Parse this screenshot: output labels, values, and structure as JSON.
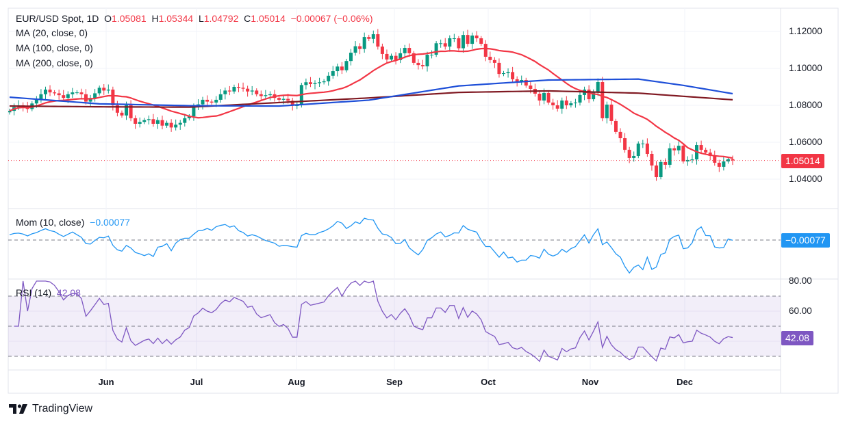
{
  "header": {
    "symbol": "EUR/USD Spot, 1D",
    "o_label": "O",
    "o": "1.05081",
    "h_label": "H",
    "h": "1.05344",
    "l_label": "L",
    "l": "1.04792",
    "c_label": "C",
    "c": "1.05014",
    "change": "−0.00067 (−0.06%)"
  },
  "indicators": {
    "ma20": "MA (20, close, 0)",
    "ma100": "MA (100, close, 0)",
    "ma200": "MA (200, close, 0)",
    "mom": "Mom (10, close)",
    "mom_value": "−0.00077",
    "rsi": "RSI (14)",
    "rsi_value": "42.08"
  },
  "brand": "TradingView",
  "colors": {
    "up": "#089981",
    "down": "#f23645",
    "ma20": "#f23645",
    "ma100": "#1e4fd8",
    "ma200": "#801922",
    "mom": "#2196f3",
    "rsi": "#7e57c2"
  },
  "chart_data": [
    {
      "type": "candlestick",
      "title": "EUR/USD Spot, 1D",
      "x_tick_labels": [
        "Jun",
        "Jul",
        "Aug",
        "Sep",
        "Oct",
        "Nov",
        "Dec"
      ],
      "y_tick_labels": [
        "1.12000",
        "1.10000",
        "1.08000",
        "1.06000",
        "1.04000"
      ],
      "y_ticks": [
        1.12,
        1.1,
        1.08,
        1.06,
        1.04
      ],
      "ylim": [
        1.0295,
        1.1245
      ],
      "last_price": 1.05014,
      "last_price_label": "1.05014",
      "grid": true,
      "closes": [
        1.077,
        1.079,
        1.08,
        1.0795,
        1.078,
        1.081,
        1.083,
        1.086,
        1.0885,
        1.087,
        1.0865,
        1.0855,
        1.084,
        1.086,
        1.087,
        1.087,
        1.086,
        1.082,
        1.084,
        1.0865,
        1.0895,
        1.088,
        1.0885,
        1.08,
        1.076,
        1.0745,
        1.08,
        1.073,
        1.07,
        1.071,
        1.072,
        1.0725,
        1.07,
        1.072,
        1.069,
        1.0705,
        1.068,
        1.0695,
        1.0705,
        1.073,
        1.074,
        1.079,
        1.0805,
        1.083,
        1.082,
        1.0815,
        1.083,
        1.086,
        1.088,
        1.0875,
        1.09,
        1.0895,
        1.089,
        1.0875,
        1.088,
        1.086,
        1.085,
        1.0855,
        1.086,
        1.084,
        1.083,
        1.0835,
        1.0825,
        1.08,
        1.08,
        1.091,
        1.0925,
        1.0915,
        1.092,
        1.0925,
        1.093,
        1.096,
        1.0985,
        1.101,
        1.099,
        1.104,
        1.1085,
        1.112,
        1.1105,
        1.117,
        1.116,
        1.1185,
        1.1118,
        1.1078,
        1.1048,
        1.1068,
        1.1045,
        1.1082,
        1.1111,
        1.1082,
        1.103,
        1.1018,
        1.1011,
        1.1074,
        1.1074,
        1.1136,
        1.1136,
        1.1118,
        1.1163,
        1.1163,
        1.1109,
        1.1181,
        1.1133,
        1.1178,
        1.1163,
        1.1133,
        1.1063,
        1.1045,
        1.103,
        1.097,
        1.0974,
        1.098,
        1.0941,
        1.093,
        1.0937,
        1.0907,
        1.0889,
        1.0863,
        1.0826,
        1.0867,
        1.0815,
        1.08,
        1.0782,
        1.0826,
        1.08,
        1.0811,
        1.0815,
        1.0856,
        1.0885,
        1.0833,
        1.0874,
        1.0926,
        1.073,
        1.0804,
        1.0715,
        1.0656,
        1.0622,
        1.0559,
        1.0515,
        1.0526,
        1.0593,
        1.0593,
        1.0537,
        1.0474,
        1.0411,
        1.0493,
        1.0478,
        1.0567,
        1.0556,
        1.0581,
        1.0496,
        1.0504,
        1.0507,
        1.0585,
        1.0559,
        1.0544,
        1.0526,
        1.0489,
        1.0467,
        1.0496,
        1.0508,
        1.05014
      ],
      "ma100_points": [
        [
          0,
          1.0844
        ],
        [
          20,
          1.0808
        ],
        [
          40,
          1.0798
        ],
        [
          60,
          1.0796
        ],
        [
          80,
          1.0828
        ],
        [
          100,
          1.0905
        ],
        [
          120,
          1.0937
        ],
        [
          140,
          1.0942
        ],
        [
          150,
          1.0908
        ],
        [
          161,
          1.0863
        ]
      ],
      "ma200_points": [
        [
          0,
          1.0796
        ],
        [
          20,
          1.0792
        ],
        [
          40,
          1.079
        ],
        [
          60,
          1.0815
        ],
        [
          80,
          1.084
        ],
        [
          100,
          1.087
        ],
        [
          120,
          1.0878
        ],
        [
          140,
          1.0866
        ],
        [
          161,
          1.083
        ]
      ]
    },
    {
      "type": "line",
      "title": "Mom (10, close)",
      "last_value": -0.00077,
      "last_value_label": "−0.00077",
      "zero_line": true
    },
    {
      "type": "line",
      "title": "RSI (14)",
      "y_tick_labels": [
        "80.00",
        "60.00"
      ],
      "y_ticks": [
        80,
        60
      ],
      "band": [
        30,
        70
      ],
      "mid_line": 50,
      "last_value": 42.08,
      "last_value_label": "42.08"
    }
  ]
}
